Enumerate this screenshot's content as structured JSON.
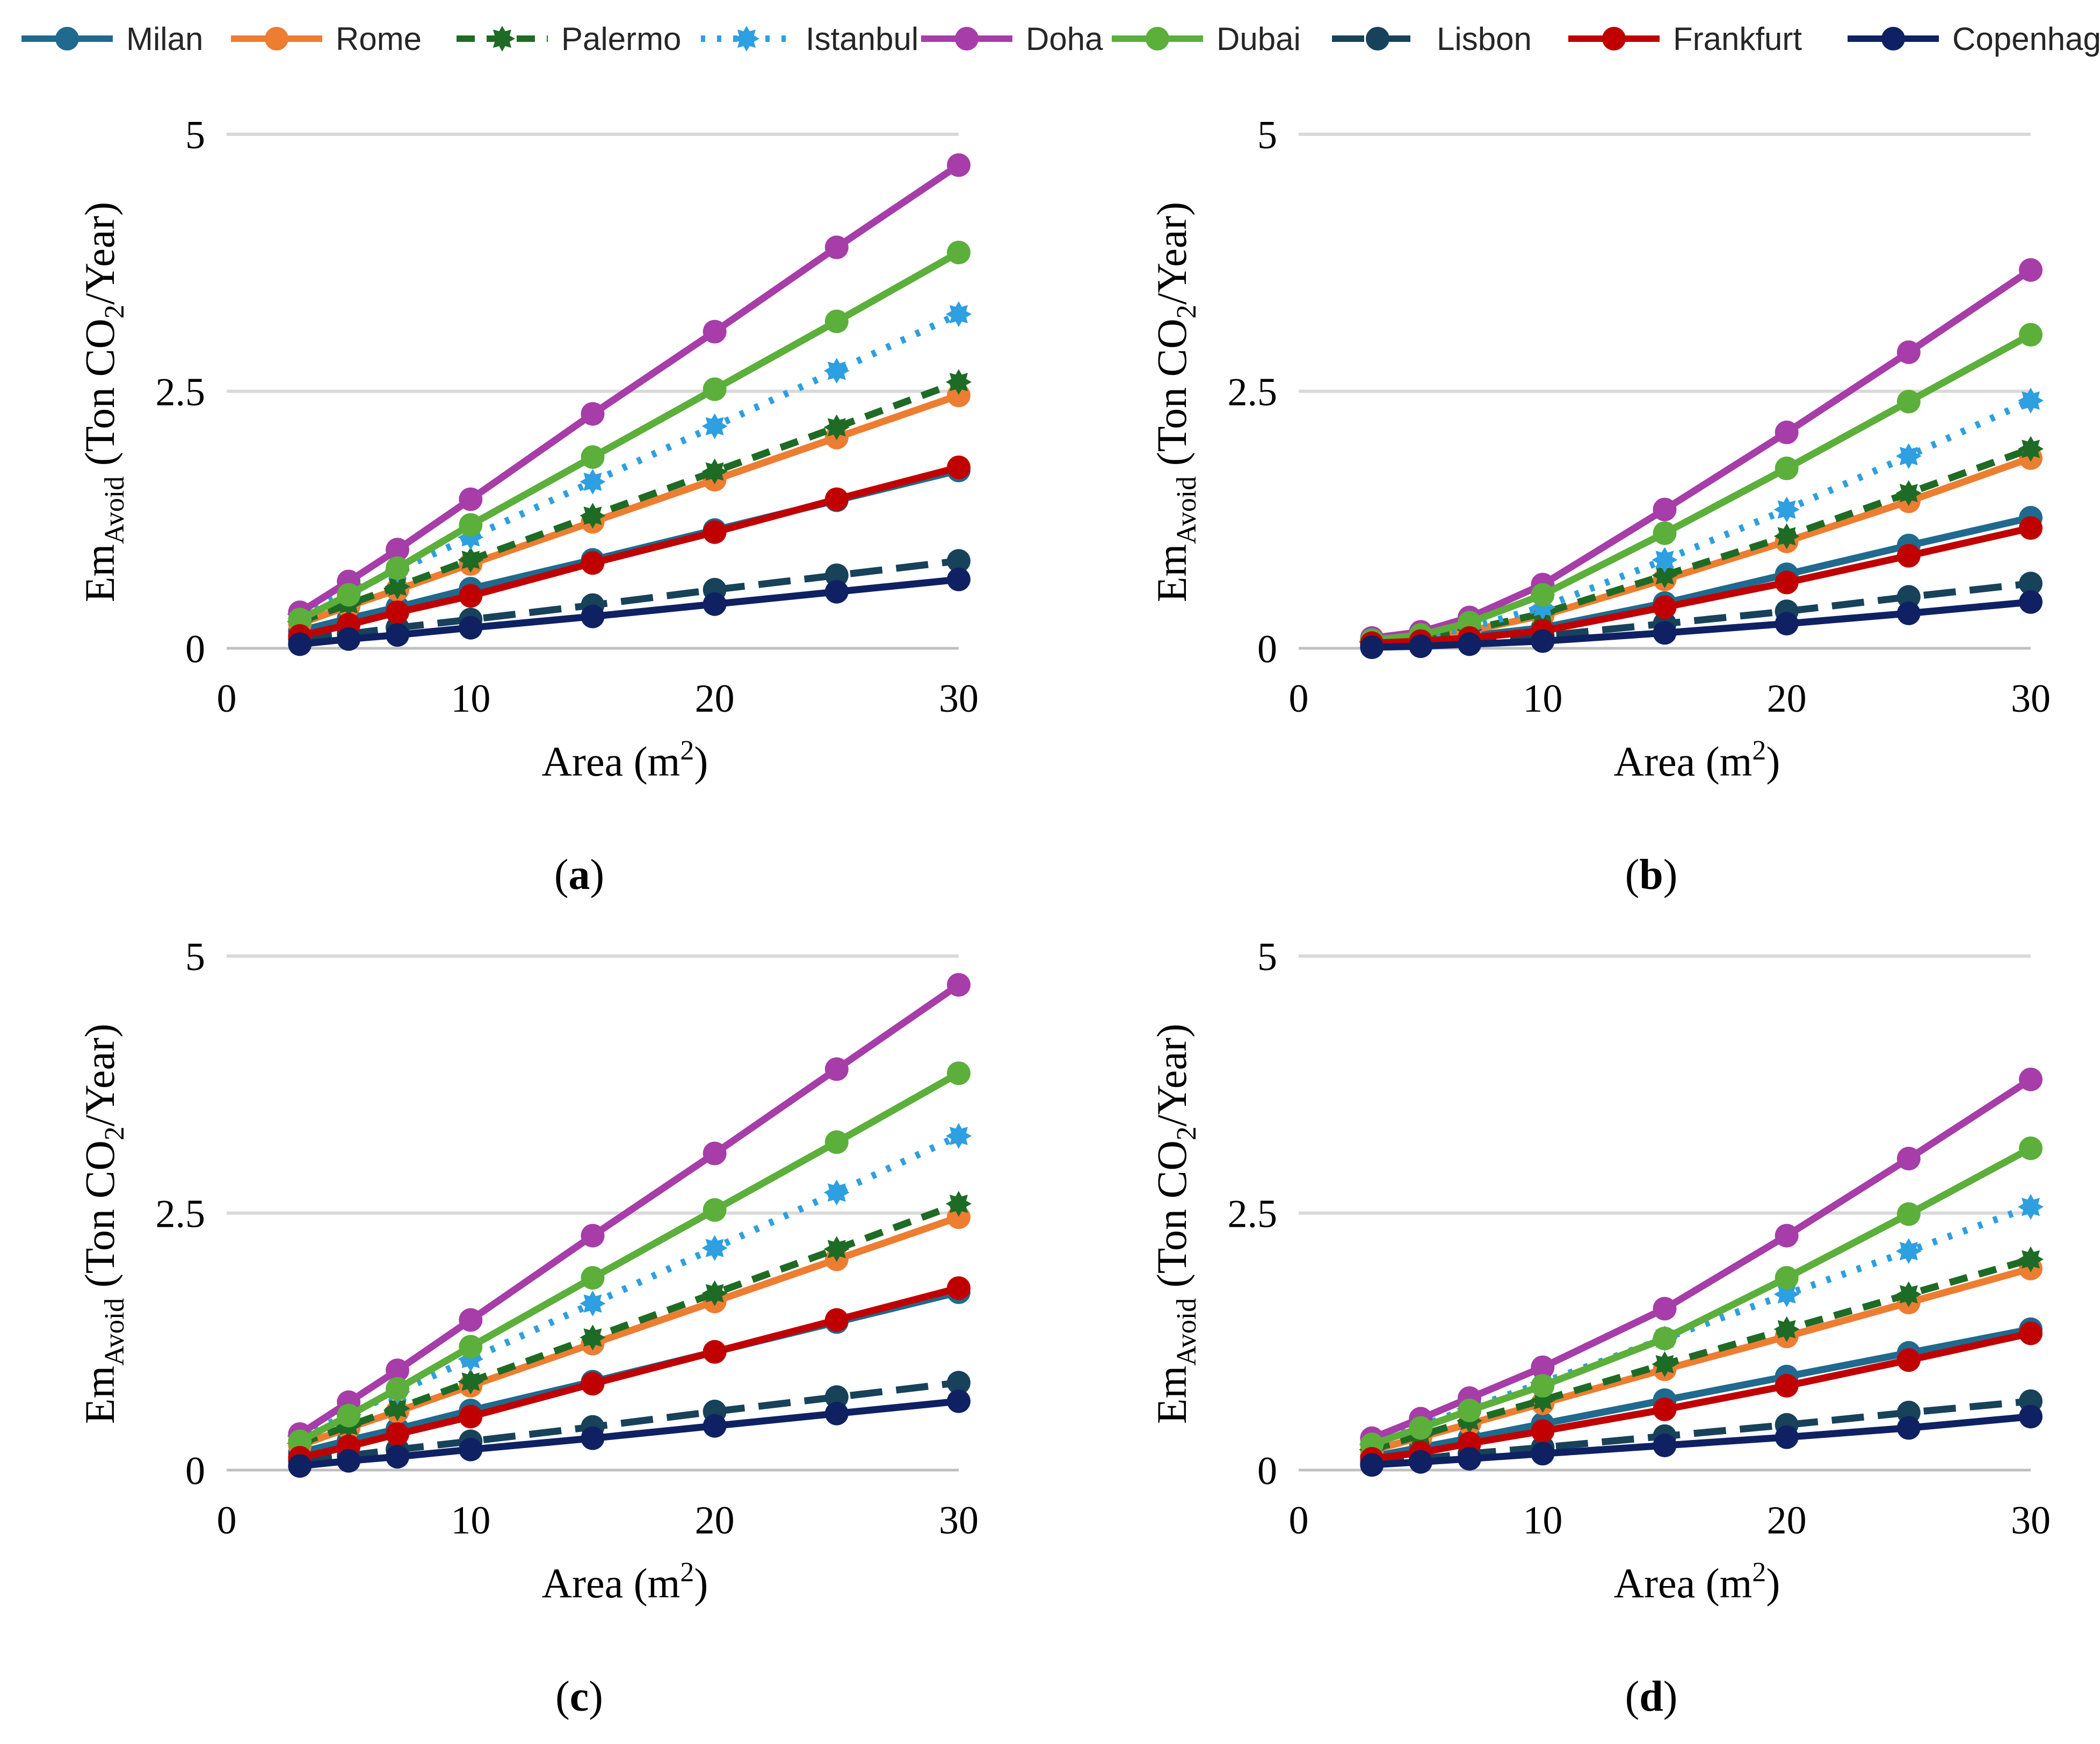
{
  "legend": {
    "position": "top",
    "series": [
      {
        "name": "Milan",
        "color": "#1F6A8E",
        "dash": "solid",
        "marker": "circle"
      },
      {
        "name": "Rome",
        "color": "#ED7D31",
        "dash": "solid",
        "marker": "circle"
      },
      {
        "name": "Palermo",
        "color": "#1E6B26",
        "dash": "dash",
        "marker": "star"
      },
      {
        "name": "Istanbul",
        "color": "#2E9FE0",
        "dash": "dot",
        "marker": "star"
      },
      {
        "name": "Doha",
        "color": "#A63DA8",
        "dash": "solid",
        "marker": "circle"
      },
      {
        "name": "Dubai",
        "color": "#5BAF3A",
        "dash": "solid",
        "marker": "circle"
      },
      {
        "name": "Lisbon",
        "color": "#17425A",
        "dash": "longdash",
        "marker": "circle"
      },
      {
        "name": "Frankfurt",
        "color": "#C00000",
        "dash": "solid",
        "marker": "circle"
      },
      {
        "name": "Copenhagen",
        "color": "#0F2163",
        "dash": "solid",
        "marker": "circle"
      }
    ]
  },
  "chart_data": [
    {
      "type": "line",
      "panel_label": {
        "open": "(",
        "letter": "a",
        "close": ")"
      },
      "xlabel": {
        "base": "Area (m",
        "sup": "2",
        "close": ")"
      },
      "ylabel": {
        "base": "Em",
        "sub": "Avoid",
        "rest": " (Ton CO",
        "sub2": "2",
        "close": "/Year)"
      },
      "xlim": [
        0,
        30
      ],
      "ylim": [
        0,
        5
      ],
      "xticks": [
        "0",
        "10",
        "20",
        "30"
      ],
      "yticks": [
        "0",
        "2.5",
        "5"
      ],
      "grid": true,
      "x": [
        3,
        5,
        7,
        10,
        15,
        20,
        25,
        30
      ],
      "series": [
        {
          "name": "Milan",
          "values": [
            0.17,
            0.29,
            0.4,
            0.58,
            0.86,
            1.15,
            1.44,
            1.73
          ]
        },
        {
          "name": "Rome",
          "values": [
            0.24,
            0.41,
            0.57,
            0.82,
            1.23,
            1.64,
            2.05,
            2.46
          ]
        },
        {
          "name": "Palermo",
          "values": [
            0.26,
            0.43,
            0.6,
            0.86,
            1.29,
            1.72,
            2.15,
            2.59
          ]
        },
        {
          "name": "Istanbul",
          "values": [
            0.33,
            0.54,
            0.76,
            1.08,
            1.62,
            2.16,
            2.7,
            3.25
          ]
        },
        {
          "name": "Doha",
          "values": [
            0.35,
            0.65,
            0.96,
            1.45,
            2.28,
            3.08,
            3.9,
            4.7
          ]
        },
        {
          "name": "Dubai",
          "values": [
            0.28,
            0.52,
            0.78,
            1.2,
            1.86,
            2.52,
            3.18,
            3.85
          ]
        },
        {
          "name": "Lisbon",
          "values": [
            0.09,
            0.14,
            0.2,
            0.28,
            0.42,
            0.57,
            0.71,
            0.85
          ]
        },
        {
          "name": "Frankfurt",
          "values": [
            0.12,
            0.23,
            0.35,
            0.51,
            0.83,
            1.13,
            1.45,
            1.76
          ]
        },
        {
          "name": "Copenhagen",
          "values": [
            0.04,
            0.09,
            0.13,
            0.2,
            0.31,
            0.43,
            0.55,
            0.67
          ]
        }
      ]
    },
    {
      "type": "line",
      "panel_label": {
        "open": "(",
        "letter": "b",
        "close": ")"
      },
      "xlabel": {
        "base": "Area (m",
        "sup": "2",
        "close": ")"
      },
      "ylabel": {
        "base": "Em",
        "sub": "Avoid",
        "rest": " (Ton CO",
        "sub2": "2",
        "close": "/Year)"
      },
      "xlim": [
        0,
        30
      ],
      "ylim": [
        0,
        5
      ],
      "xticks": [
        "0",
        "10",
        "20",
        "30"
      ],
      "yticks": [
        "0",
        "2.5",
        "5"
      ],
      "grid": true,
      "x": [
        3,
        5,
        7,
        10,
        15,
        20,
        25,
        30
      ],
      "series": [
        {
          "name": "Milan",
          "values": [
            0.06,
            0.08,
            0.12,
            0.2,
            0.44,
            0.72,
            1.0,
            1.27
          ]
        },
        {
          "name": "Rome",
          "values": [
            0.06,
            0.09,
            0.17,
            0.32,
            0.67,
            1.04,
            1.43,
            1.85
          ]
        },
        {
          "name": "Palermo",
          "values": [
            0.06,
            0.09,
            0.18,
            0.34,
            0.71,
            1.09,
            1.51,
            1.94
          ]
        },
        {
          "name": "Istanbul",
          "values": [
            0.07,
            0.11,
            0.2,
            0.4,
            0.86,
            1.35,
            1.87,
            2.41
          ]
        },
        {
          "name": "Doha",
          "values": [
            0.1,
            0.16,
            0.3,
            0.62,
            1.35,
            2.1,
            2.88,
            3.68
          ]
        },
        {
          "name": "Dubai",
          "values": [
            0.08,
            0.13,
            0.25,
            0.52,
            1.12,
            1.75,
            2.4,
            3.05
          ]
        },
        {
          "name": "Lisbon",
          "values": [
            0.03,
            0.05,
            0.08,
            0.12,
            0.24,
            0.36,
            0.5,
            0.63
          ]
        },
        {
          "name": "Frankfurt",
          "values": [
            0.05,
            0.07,
            0.1,
            0.17,
            0.4,
            0.64,
            0.9,
            1.17
          ]
        },
        {
          "name": "Copenhagen",
          "values": [
            0.01,
            0.02,
            0.04,
            0.07,
            0.15,
            0.24,
            0.34,
            0.45
          ]
        }
      ]
    },
    {
      "type": "line",
      "panel_label": {
        "open": "(",
        "letter": "c",
        "close": ")"
      },
      "xlabel": {
        "base": "Area (m",
        "sup": "2",
        "close": ")"
      },
      "ylabel": {
        "base": "Em",
        "sub": "Avoid",
        "rest": " (Ton CO",
        "sub2": "2",
        "close": "/Year)"
      },
      "xlim": [
        0,
        30
      ],
      "ylim": [
        0,
        5
      ],
      "xticks": [
        "0",
        "10",
        "20",
        "30"
      ],
      "yticks": [
        "0",
        "2.5",
        "5"
      ],
      "grid": true,
      "x": [
        3,
        5,
        7,
        10,
        15,
        20,
        25,
        30
      ],
      "series": [
        {
          "name": "Milan",
          "values": [
            0.17,
            0.29,
            0.4,
            0.58,
            0.86,
            1.15,
            1.44,
            1.73
          ]
        },
        {
          "name": "Rome",
          "values": [
            0.24,
            0.41,
            0.57,
            0.82,
            1.23,
            1.64,
            2.05,
            2.46
          ]
        },
        {
          "name": "Palermo",
          "values": [
            0.26,
            0.43,
            0.6,
            0.86,
            1.29,
            1.72,
            2.15,
            2.59
          ]
        },
        {
          "name": "Istanbul",
          "values": [
            0.33,
            0.54,
            0.76,
            1.08,
            1.62,
            2.16,
            2.7,
            3.25
          ]
        },
        {
          "name": "Doha",
          "values": [
            0.35,
            0.66,
            0.97,
            1.46,
            2.28,
            3.08,
            3.9,
            4.72
          ]
        },
        {
          "name": "Dubai",
          "values": [
            0.28,
            0.53,
            0.79,
            1.2,
            1.87,
            2.53,
            3.19,
            3.86
          ]
        },
        {
          "name": "Lisbon",
          "values": [
            0.09,
            0.14,
            0.2,
            0.28,
            0.42,
            0.57,
            0.71,
            0.85
          ]
        },
        {
          "name": "Frankfurt",
          "values": [
            0.12,
            0.23,
            0.35,
            0.52,
            0.84,
            1.15,
            1.46,
            1.77
          ]
        },
        {
          "name": "Copenhagen",
          "values": [
            0.04,
            0.09,
            0.13,
            0.2,
            0.31,
            0.43,
            0.55,
            0.67
          ]
        }
      ]
    },
    {
      "type": "line",
      "panel_label": {
        "open": "(",
        "letter": "d",
        "close": ")"
      },
      "xlabel": {
        "base": "Area (m",
        "sup": "2",
        "close": ")"
      },
      "ylabel": {
        "base": "Em",
        "sub": "Avoid",
        "rest": " (Ton CO",
        "sub2": "2",
        "close": "/Year)"
      },
      "xlim": [
        0,
        30
      ],
      "ylim": [
        0,
        5
      ],
      "xticks": [
        "0",
        "10",
        "20",
        "30"
      ],
      "yticks": [
        "0",
        "2.5",
        "5"
      ],
      "grid": true,
      "x": [
        3,
        5,
        7,
        10,
        15,
        20,
        25,
        30
      ],
      "series": [
        {
          "name": "Milan",
          "values": [
            0.13,
            0.22,
            0.31,
            0.45,
            0.68,
            0.91,
            1.14,
            1.37
          ]
        },
        {
          "name": "Rome",
          "values": [
            0.19,
            0.32,
            0.45,
            0.65,
            0.98,
            1.3,
            1.63,
            1.96
          ]
        },
        {
          "name": "Palermo",
          "values": [
            0.2,
            0.34,
            0.48,
            0.68,
            1.03,
            1.37,
            1.71,
            2.05
          ]
        },
        {
          "name": "Istanbul",
          "values": [
            0.25,
            0.43,
            0.6,
            0.85,
            1.28,
            1.71,
            2.13,
            2.56
          ]
        },
        {
          "name": "Doha",
          "values": [
            0.31,
            0.5,
            0.7,
            1.0,
            1.57,
            2.28,
            3.03,
            3.8
          ]
        },
        {
          "name": "Dubai",
          "values": [
            0.25,
            0.41,
            0.58,
            0.82,
            1.28,
            1.87,
            2.49,
            3.13
          ]
        },
        {
          "name": "Lisbon",
          "values": [
            0.07,
            0.11,
            0.16,
            0.22,
            0.33,
            0.44,
            0.56,
            0.67
          ]
        },
        {
          "name": "Frankfurt",
          "values": [
            0.11,
            0.17,
            0.26,
            0.38,
            0.59,
            0.82,
            1.07,
            1.33
          ]
        },
        {
          "name": "Copenhagen",
          "values": [
            0.05,
            0.08,
            0.11,
            0.16,
            0.24,
            0.32,
            0.41,
            0.52
          ]
        }
      ]
    }
  ]
}
